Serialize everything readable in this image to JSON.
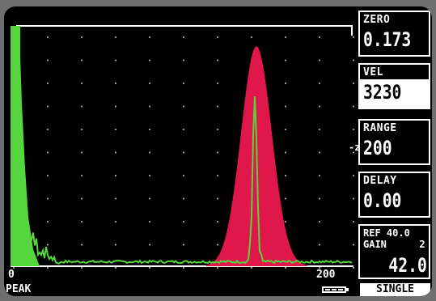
{
  "panels": {
    "zero": {
      "label": "ZERO",
      "value": "0.173"
    },
    "vel": {
      "label": "VEL",
      "value": "3230"
    },
    "range": {
      "label": "RANGE",
      "value": "200"
    },
    "delay": {
      "label": "DELAY",
      "value": "0.00"
    },
    "gain": {
      "ref_label": "REF",
      "ref_value": "40.0",
      "gain_label": "GAIN",
      "gain_step": "2",
      "gain_value": "42.0"
    }
  },
  "zero_marker": "-z",
  "axis": {
    "start": "0",
    "end": "200"
  },
  "bottom": {
    "mode": "PEAK",
    "acquisition": "SINGLE",
    "battery_icon": "battery-icon"
  },
  "colors": {
    "peak_fill": "#e0174a",
    "trace": "#55d63c",
    "grid": "#c8c8c8"
  }
}
